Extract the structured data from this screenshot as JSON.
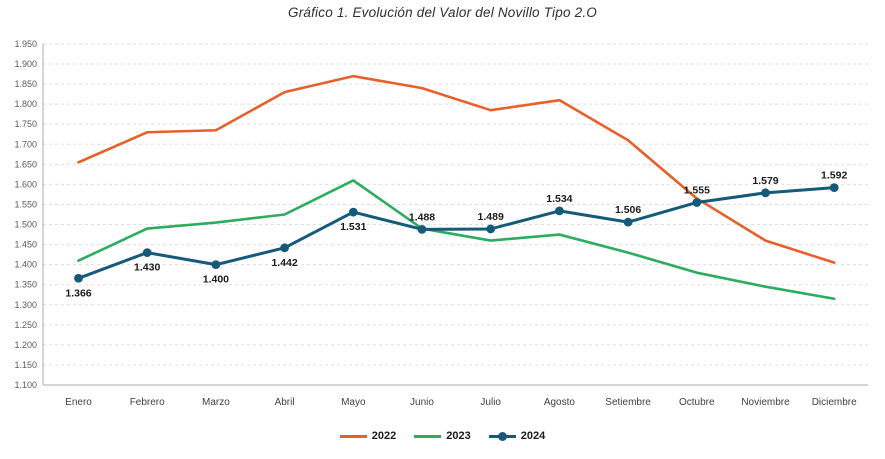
{
  "chart_data": {
    "type": "line",
    "title": "Gráfico 1. Evolución del Valor del Novillo Tipo 2.O",
    "categories": [
      "Enero",
      "Febrero",
      "Marzo",
      "Abril",
      "Mayo",
      "Junio",
      "Julio",
      "Agosto",
      "Setiembre",
      "Octubre",
      "Noviembre",
      "Diciembre"
    ],
    "series": [
      {
        "name": "2022",
        "color": "#E7602A",
        "values": [
          1655,
          1730,
          1735,
          1830,
          1870,
          1840,
          1785,
          1810,
          1710,
          1565,
          1460,
          1405
        ]
      },
      {
        "name": "2023",
        "color": "#2BAC5F",
        "values": [
          1410,
          1490,
          1505,
          1525,
          1610,
          1490,
          1460,
          1475,
          1430,
          1380,
          1345,
          1315
        ]
      },
      {
        "name": "2024",
        "color": "#155A7A",
        "marker": "circle",
        "show_labels": true,
        "values": [
          1366,
          1430,
          1400,
          1442,
          1531,
          1488,
          1489,
          1534,
          1506,
          1555,
          1579,
          1592
        ],
        "value_labels": [
          "1.366",
          "1.430",
          "1.400",
          "1.442",
          "1.531",
          "1.488",
          "1.489",
          "1.534",
          "1.506",
          "1.555",
          "1.579",
          "1.592"
        ],
        "label_positions": [
          "below",
          "below",
          "below",
          "below",
          "below",
          "above",
          "above",
          "above",
          "above",
          "above",
          "above",
          "above"
        ]
      }
    ],
    "ylim": [
      1100,
      1950
    ],
    "ytick_step": 50,
    "ytick_label_format": "thousands-dot",
    "grid": "horizontal-dashed",
    "legend_position": "bottom-center"
  }
}
